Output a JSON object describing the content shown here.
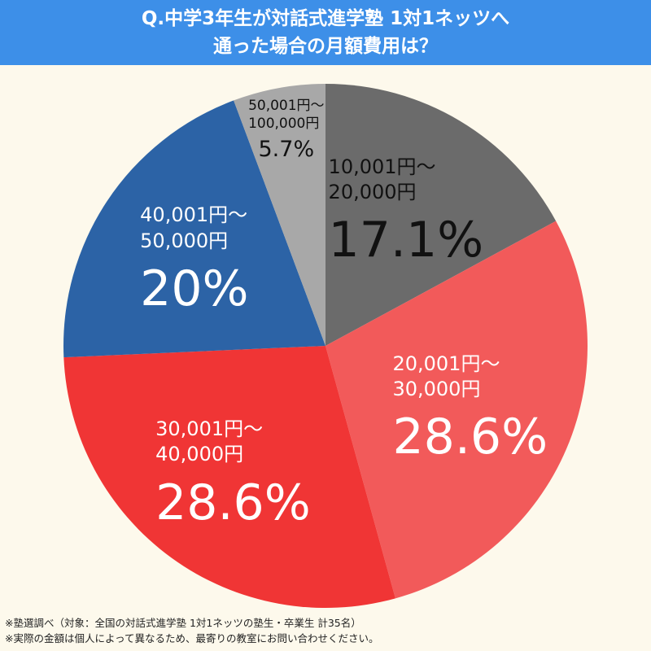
{
  "chart_data": {
    "type": "pie",
    "title": [
      "Q.中学3年生が対話式進学塾 1対1ネッツへ",
      "通った場合の月額費用は？"
    ],
    "categories": [
      "10,001円～\n20,000円",
      "20,001円～\n30,000円",
      "30,001円～\n40,000円",
      "40,001円～\n50,000円",
      "50,001円～\n100,000円"
    ],
    "values": [
      17.1,
      28.6,
      28.6,
      20,
      5.7
    ],
    "value_labels": [
      "17.1%",
      "28.6%",
      "28.6%",
      "20%",
      "5.7%"
    ],
    "colors": [
      "#6b6b6b",
      "#f25a5a",
      "#f03535",
      "#2c63a6",
      "#a8a8a8"
    ],
    "notes": [
      "※塾選調べ（対象：全国の対話式進学塾 1対1ネッツの塾生・卒業生 計35名）",
      "※実際の金額は個人によって異なるため、最寄りの教室にお問い合わせください。"
    ]
  }
}
